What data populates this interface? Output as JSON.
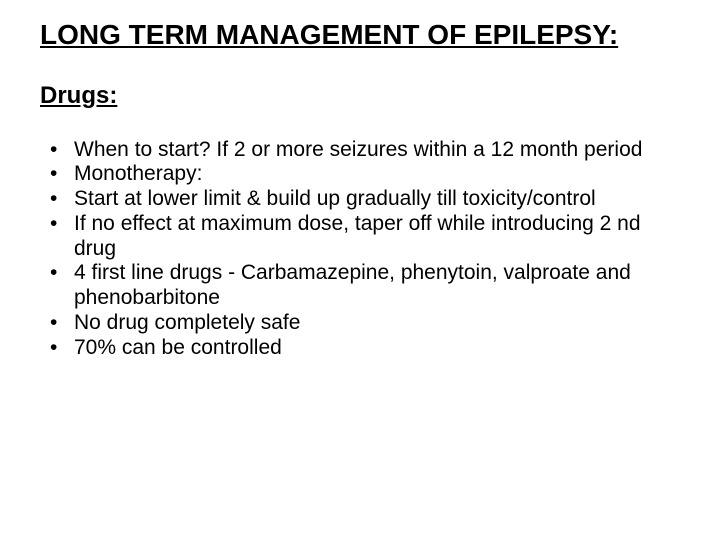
{
  "title": "LONG  TERM MANAGEMENT OF EPILEPSY:",
  "subheading": "Drugs:",
  "bullets": [
    "When to start?  If 2 or more seizures within a 12 month period",
    "Monotherapy:",
    "Start at lower limit & build up gradually till toxicity/control",
    "If no effect at maximum dose, taper off while introducing 2 nd drug",
    "4 first line drugs - Carbamazepine, phenytoin, valproate and phenobarbitone",
    "No drug completely safe",
    "70% can be controlled"
  ],
  "colors": {
    "background": "#ffffff",
    "text": "#000000"
  },
  "typography": {
    "title_fontsize": 28,
    "subheading_fontsize": 24,
    "body_fontsize": 21,
    "font_family": "Arial"
  }
}
